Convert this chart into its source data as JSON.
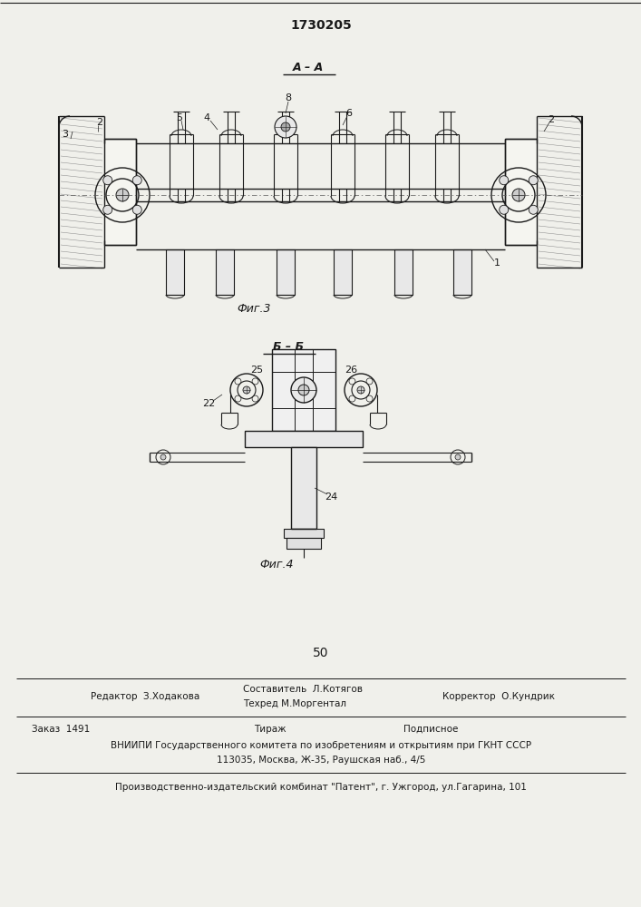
{
  "title": "1730205",
  "page_number": "50",
  "fig3_label": "Фиг.3",
  "fig4_label": "Фиг.4",
  "section_aa": "А – А",
  "section_bb": "Б – Б",
  "editor_line": "Редактор  З.Ходакова",
  "composer_line": "Составитель  Л.Котягов",
  "techred_line": "Техред М.Моргентал",
  "corrector_line": "Корректор  О.Кундрик",
  "order_line": "Заказ  1491",
  "tirazh_line": "Тираж",
  "podpisnoe_line": "Подписное",
  "vniip_line": "ВНИИПИ Государственного комитета по изобретениям и открытиям при ГКНТ СССР",
  "address_line": "113035, Москва, Ж-35, Раушская наб., 4/5",
  "factory_line": "Производственно-издательский комбинат \"Патент\", г. Ужгород, ул.Гагарина, 101",
  "bg_color": "#f0f0eb",
  "line_color": "#1a1a1a"
}
